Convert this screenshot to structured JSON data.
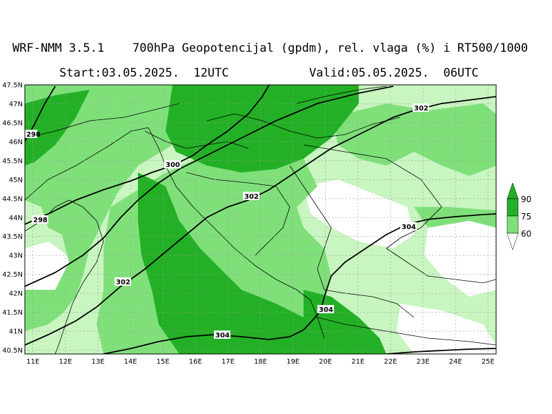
{
  "header": {
    "line1": "WRF-NMM 3.5.1    700hPa Geopotencijal (gpdm), rel. vlaga (%) i RT500/1000",
    "start": "Start:03.05.2025.  12UTC",
    "valid": "Valid:05.05.2025.  06UTC"
  },
  "map": {
    "lon_range": [
      10.75,
      25.25
    ],
    "lat_range": [
      40.4,
      47.5
    ],
    "lon_ticks": [
      "11E",
      "12E",
      "13E",
      "14E",
      "15E",
      "16E",
      "17E",
      "18E",
      "19E",
      "20E",
      "21E",
      "22E",
      "23E",
      "24E",
      "25E"
    ],
    "lat_ticks": [
      "40.5N",
      "41N",
      "41.5N",
      "42N",
      "42.5N",
      "43N",
      "43.5N",
      "44N",
      "44.5N",
      "45N",
      "45.5N",
      "46N",
      "46.5N",
      "47N",
      "47.5N"
    ],
    "contour_labels": [
      "298",
      "298",
      "300",
      "302",
      "302",
      "302",
      "304",
      "304",
      "304"
    ],
    "fill_colors": {
      "low": "#c8f5c0",
      "mid": "#7fe07a",
      "high": "#23b026",
      "border": "#000000",
      "grid": "#999999"
    }
  },
  "legend": {
    "values": [
      "90",
      "75",
      "60"
    ],
    "colors": [
      "#23b026",
      "#7fe07a",
      "#c8f5c0"
    ]
  }
}
